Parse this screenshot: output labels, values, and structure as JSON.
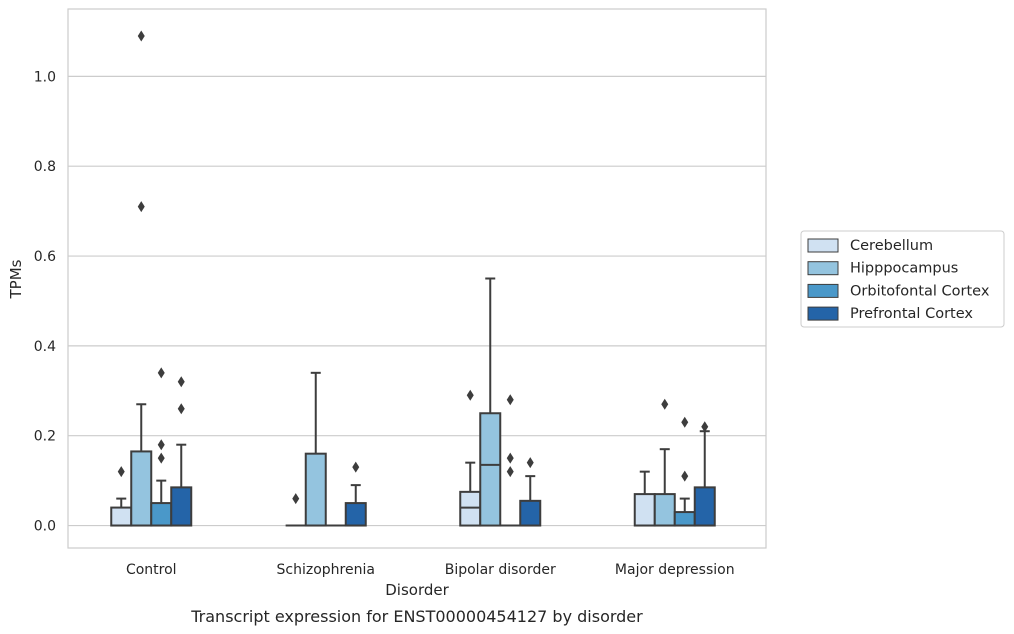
{
  "chart_data": {
    "type": "box",
    "title": "",
    "caption": "Transcript expression for ENST00000454127 by disorder",
    "xlabel": "Disorder",
    "ylabel": "TPMs",
    "ylim": [
      -0.05,
      1.15
    ],
    "yticks": [
      0.0,
      0.2,
      0.4,
      0.6,
      0.8,
      1.0
    ],
    "ytick_labels": [
      "0.0",
      "0.2",
      "0.4",
      "0.6",
      "0.8",
      "1.0"
    ],
    "grid": "horizontal",
    "legend_position": "right",
    "categories": [
      "Control",
      "Schizophrenia",
      "Bipolar disorder",
      "Major depression"
    ],
    "series": [
      {
        "name": "Cerebellum",
        "color": "#d0e1f2",
        "boxes": [
          {
            "q1": 0.0,
            "median": 0.0,
            "q3": 0.04,
            "whislo": 0.0,
            "whishi": 0.06,
            "fliers": [
              0.12
            ]
          },
          {
            "q1": 0.0,
            "median": 0.0,
            "q3": 0.0,
            "whislo": 0.0,
            "whishi": 0.0,
            "fliers": [
              0.06
            ]
          },
          {
            "q1": 0.0,
            "median": 0.04,
            "q3": 0.075,
            "whislo": 0.0,
            "whishi": 0.14,
            "fliers": [
              0.29
            ]
          },
          {
            "q1": 0.0,
            "median": 0.0,
            "q3": 0.07,
            "whislo": 0.0,
            "whishi": 0.12,
            "fliers": []
          }
        ]
      },
      {
        "name": "Hipppocampus",
        "color": "#94c4df",
        "boxes": [
          {
            "q1": 0.0,
            "median": 0.0,
            "q3": 0.165,
            "whislo": 0.0,
            "whishi": 0.27,
            "fliers": [
              1.09,
              0.71
            ]
          },
          {
            "q1": 0.0,
            "median": 0.0,
            "q3": 0.16,
            "whislo": 0.0,
            "whishi": 0.34,
            "fliers": []
          },
          {
            "q1": 0.0,
            "median": 0.135,
            "q3": 0.25,
            "whislo": 0.0,
            "whishi": 0.55,
            "fliers": []
          },
          {
            "q1": 0.0,
            "median": 0.0,
            "q3": 0.07,
            "whislo": 0.0,
            "whishi": 0.17,
            "fliers": [
              0.27
            ]
          }
        ]
      },
      {
        "name": "Orbitofontal Cortex",
        "color": "#4a98c9",
        "boxes": [
          {
            "q1": 0.0,
            "median": 0.0,
            "q3": 0.05,
            "whislo": 0.0,
            "whishi": 0.1,
            "fliers": [
              0.34,
              0.18,
              0.15
            ]
          },
          {
            "q1": 0.0,
            "median": 0.0,
            "q3": 0.0,
            "whislo": 0.0,
            "whishi": 0.0,
            "fliers": []
          },
          {
            "q1": 0.0,
            "median": 0.0,
            "q3": 0.0,
            "whislo": 0.0,
            "whishi": 0.0,
            "fliers": [
              0.28,
              0.15,
              0.12
            ]
          },
          {
            "q1": 0.0,
            "median": 0.0,
            "q3": 0.03,
            "whislo": 0.0,
            "whishi": 0.06,
            "fliers": [
              0.23,
              0.11
            ]
          }
        ]
      },
      {
        "name": "Prefrontal Cortex",
        "color": "#2464a8",
        "boxes": [
          {
            "q1": 0.0,
            "median": 0.0,
            "q3": 0.085,
            "whislo": 0.0,
            "whishi": 0.18,
            "fliers": [
              0.32,
              0.26
            ]
          },
          {
            "q1": 0.0,
            "median": 0.0,
            "q3": 0.05,
            "whislo": 0.0,
            "whishi": 0.09,
            "fliers": [
              0.13
            ]
          },
          {
            "q1": 0.0,
            "median": 0.0,
            "q3": 0.055,
            "whislo": 0.0,
            "whishi": 0.11,
            "fliers": [
              0.14
            ]
          },
          {
            "q1": 0.0,
            "median": 0.0,
            "q3": 0.085,
            "whislo": 0.0,
            "whishi": 0.21,
            "fliers": [
              0.22
            ]
          }
        ]
      }
    ]
  }
}
